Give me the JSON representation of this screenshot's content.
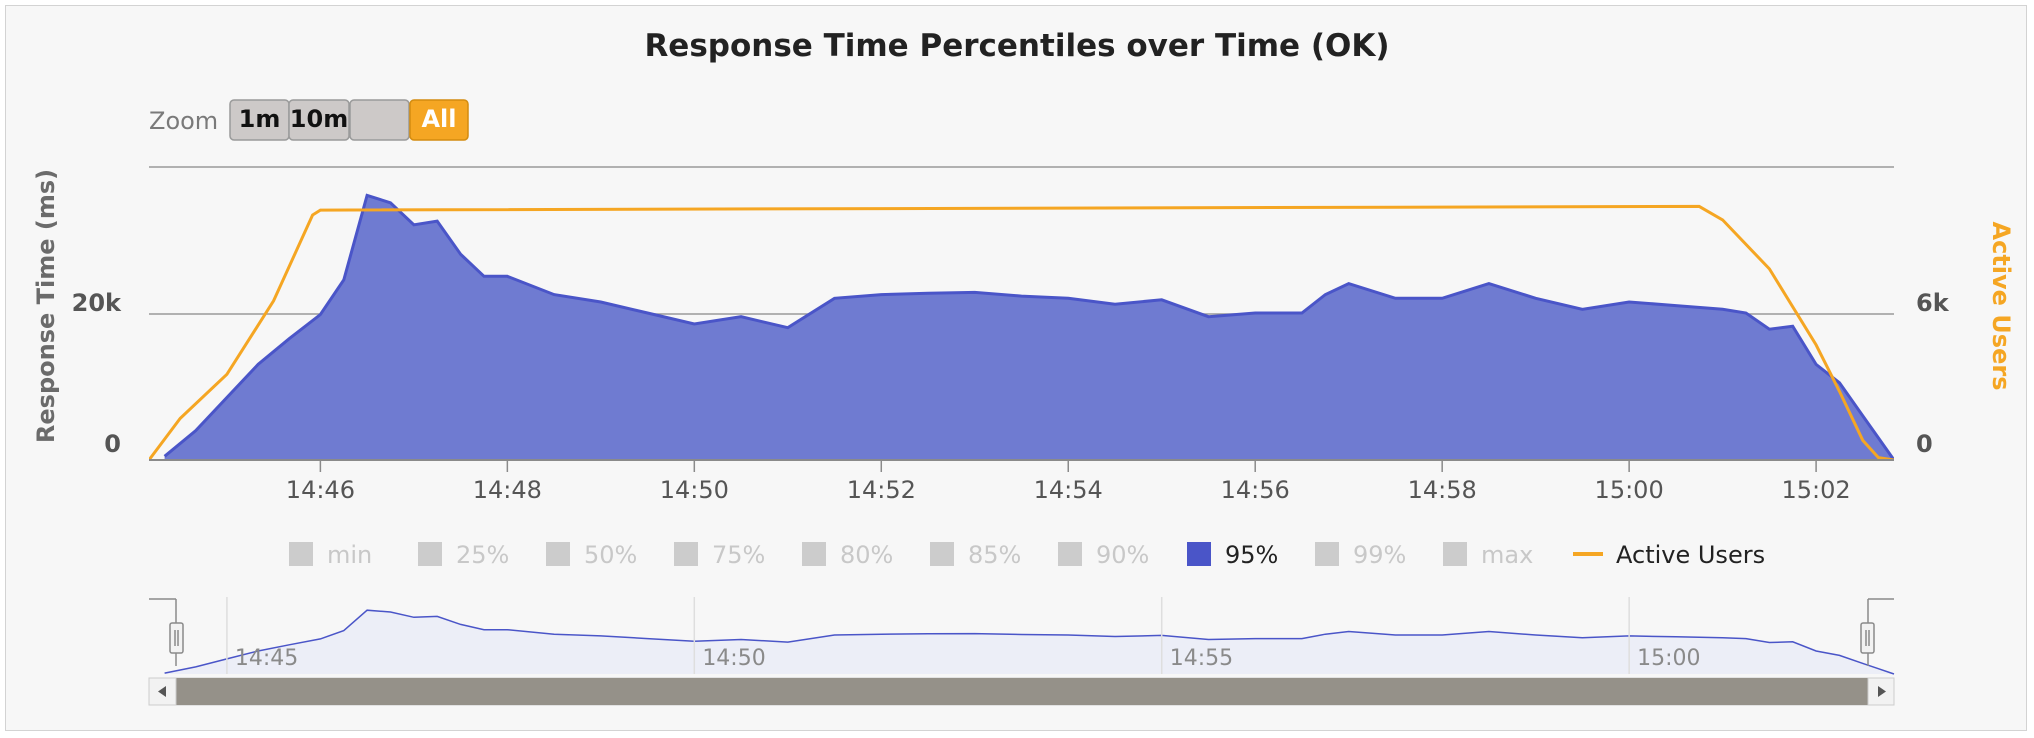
{
  "colors": {
    "series_95": "#4a55c8",
    "series_95_fill": "#6f7bd1",
    "active_users": "#f5a623",
    "inactive_legend": "#cccccc",
    "button_bg": "#cdc9c8",
    "button_selected": "#f5a623"
  },
  "zoom": {
    "label": "Zoom",
    "buttons": [
      {
        "label": "1m",
        "selected": false
      },
      {
        "label": "10m",
        "selected": false
      },
      {
        "label": "",
        "selected": false
      },
      {
        "label": "All",
        "selected": true
      }
    ]
  },
  "navigator": {
    "tick_labels": [
      "14:45",
      "14:50",
      "14:55",
      "15:00"
    ]
  },
  "chart_data": {
    "type": "area",
    "title": "Response Time Percentiles over Time (OK)",
    "ylabel": "Response Time (ms)",
    "ylabel_right": "Active Users",
    "y_ticks": [
      "0",
      "20k"
    ],
    "y_right_ticks": [
      "0",
      "6k"
    ],
    "ylim": [
      0,
      40000
    ],
    "ylim_right": [
      0,
      12000
    ],
    "xlim": [
      "14:44:10",
      "15:02:50"
    ],
    "x_tick_labels": [
      "14:46",
      "14:48",
      "14:50",
      "14:52",
      "14:54",
      "14:56",
      "14:58",
      "15:00",
      "15:02"
    ],
    "grid": true,
    "legend": {
      "position": "bottom",
      "items": [
        {
          "name": "min",
          "active": false
        },
        {
          "name": "25%",
          "active": false
        },
        {
          "name": "50%",
          "active": false
        },
        {
          "name": "75%",
          "active": false
        },
        {
          "name": "80%",
          "active": false
        },
        {
          "name": "85%",
          "active": false
        },
        {
          "name": "90%",
          "active": false
        },
        {
          "name": "95%",
          "active": true
        },
        {
          "name": "99%",
          "active": false
        },
        {
          "name": "max",
          "active": false
        },
        {
          "name": "Active Users",
          "active": true,
          "type": "line"
        }
      ]
    },
    "series": [
      {
        "name": "95%",
        "axis": "left",
        "x": [
          "14:44:20",
          "14:44:40",
          "14:45:00",
          "14:45:20",
          "14:45:40",
          "14:46:00",
          "14:46:15",
          "14:46:30",
          "14:46:45",
          "14:47:00",
          "14:47:15",
          "14:47:30",
          "14:47:45",
          "14:48:00",
          "14:48:30",
          "14:49:00",
          "14:49:30",
          "14:50:00",
          "14:50:30",
          "14:51:00",
          "14:51:30",
          "14:52:00",
          "14:52:30",
          "14:53:00",
          "14:53:30",
          "14:54:00",
          "14:54:30",
          "14:55:00",
          "14:55:30",
          "14:56:00",
          "14:56:30",
          "14:56:45",
          "14:57:00",
          "14:57:30",
          "14:58:00",
          "14:58:30",
          "14:59:00",
          "14:59:30",
          "15:00:00",
          "15:00:30",
          "15:01:00",
          "15:01:15",
          "15:01:30",
          "15:01:45",
          "15:02:00",
          "15:02:15",
          "15:02:30",
          "15:02:40",
          "15:02:50"
        ],
        "values": [
          500,
          4000,
          8500,
          13000,
          16500,
          19800,
          24500,
          36000,
          35000,
          32000,
          32500,
          28000,
          25000,
          25000,
          22500,
          21500,
          20000,
          18500,
          19500,
          18000,
          22000,
          22500,
          22700,
          22800,
          22300,
          22000,
          21200,
          21800,
          19500,
          20000,
          20000,
          22500,
          24000,
          22000,
          22000,
          24000,
          22000,
          20500,
          21500,
          21000,
          20500,
          20000,
          17800,
          18200,
          13000,
          10500,
          6000,
          3000,
          0
        ]
      },
      {
        "name": "Active Users",
        "axis": "right",
        "x": [
          "14:44:10",
          "14:44:30",
          "14:45:00",
          "14:45:30",
          "14:45:55",
          "14:46:00",
          "15:00:45",
          "15:01:00",
          "15:01:30",
          "15:02:00",
          "15:02:15",
          "15:02:30",
          "15:02:40",
          "15:02:50"
        ],
        "values": [
          0,
          1700,
          3500,
          6500,
          10000,
          10200,
          10350,
          9800,
          7800,
          4700,
          2800,
          800,
          100,
          0
        ]
      }
    ]
  }
}
